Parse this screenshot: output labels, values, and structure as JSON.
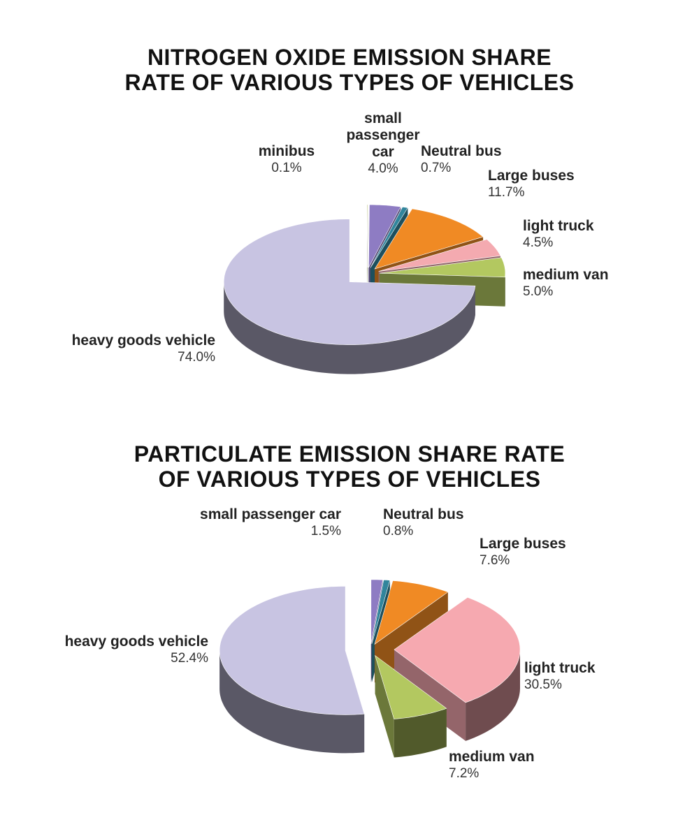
{
  "chart_data": [
    {
      "type": "pie3d",
      "title": "NITROGEN OXIDE EMISSION SHARE RATE OF VARIOUS TYPES OF VEHICLES",
      "categories": [
        "minibus",
        "small passenger car",
        "Neutral bus",
        "Large buses",
        "light truck",
        "medium van",
        "heavy goods vehicle"
      ],
      "values": [
        0.1,
        4.0,
        0.7,
        11.7,
        4.5,
        5.0,
        74.0
      ],
      "value_labels": [
        "0.1%",
        "4.0%",
        "0.7%",
        "11.7%",
        "4.5%",
        "5.0%",
        "74.0%"
      ],
      "colors": [
        "#a9b25e",
        "#8e7cc3",
        "#31859c",
        "#f08a24",
        "#f4aab0",
        "#b3c860",
        "#c8c4e2"
      ]
    },
    {
      "type": "pie3d",
      "title": "PARTICULATE EMISSION SHARE RATE OF VARIOUS TYPES OF VEHICLES",
      "categories": [
        "small passenger car",
        "Neutral bus",
        "Large buses",
        "light truck",
        "medium van",
        "heavy goods vehicle"
      ],
      "values": [
        1.5,
        0.8,
        7.6,
        30.5,
        7.2,
        52.4
      ],
      "value_labels": [
        "1.5%",
        "0.8%",
        "7.6%",
        "30.5%",
        "7.2%",
        "52.4%"
      ],
      "colors": [
        "#8e7cc3",
        "#31859c",
        "#f08a24",
        "#f6a9b0",
        "#b3c860",
        "#c8c4e2"
      ]
    }
  ]
}
